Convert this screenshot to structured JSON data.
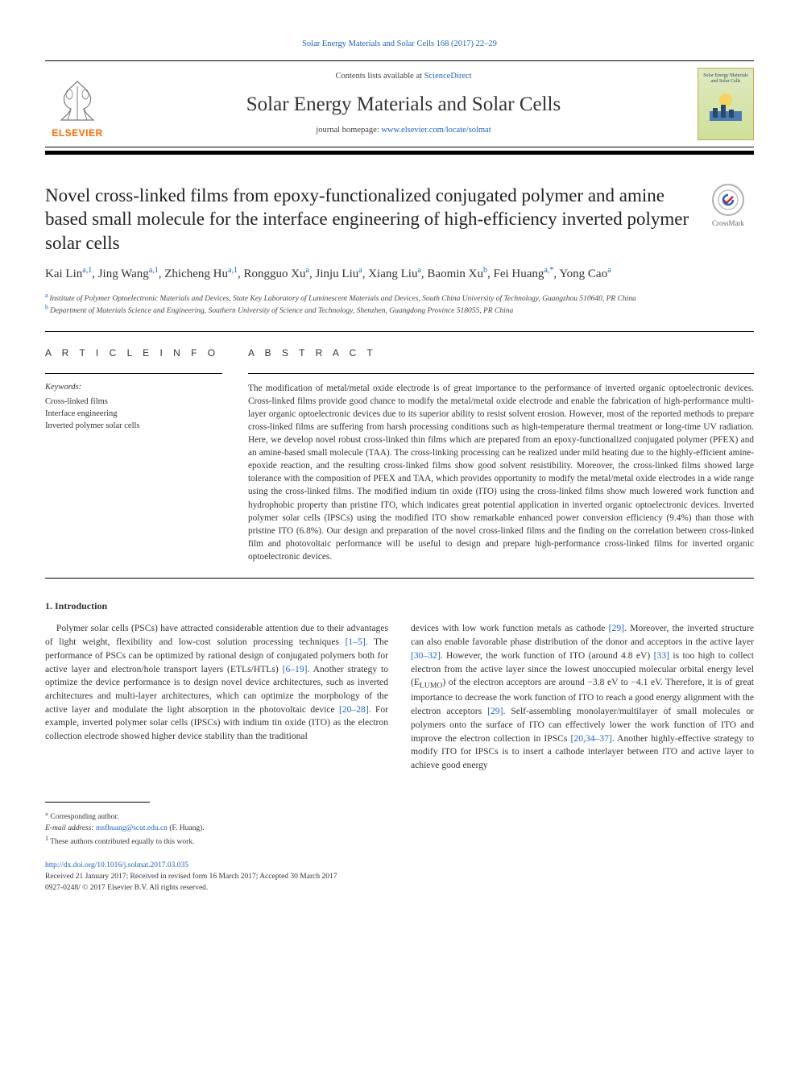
{
  "header": {
    "topCitation": "Solar Energy Materials and Solar Cells 168 (2017) 22–29",
    "contentsPrefix": "Contents lists available at ",
    "contentsLink": "ScienceDirect",
    "journalName": "Solar Energy Materials and Solar Cells",
    "homepagePrefix": "journal homepage: ",
    "homepageLink": "www.elsevier.com/locate/solmat",
    "elsevierWord": "ELSEVIER",
    "coverTitle": "Solar Energy Materials and Solar Cells"
  },
  "crossmark": {
    "label": "CrossMark"
  },
  "article": {
    "title": "Novel cross-linked films from epoxy-functionalized conjugated polymer and amine based small molecule for the interface engineering of high-efficiency inverted polymer solar cells",
    "authorsHtml": [
      {
        "name": "Kai Lin",
        "aff": "a,1"
      },
      {
        "name": "Jing Wang",
        "aff": "a,1"
      },
      {
        "name": "Zhicheng Hu",
        "aff": "a,1"
      },
      {
        "name": "Rongguo Xu",
        "aff": "a"
      },
      {
        "name": "Jinju Liu",
        "aff": "a"
      },
      {
        "name": "Xiang Liu",
        "aff": "a"
      },
      {
        "name": "Baomin Xu",
        "aff": "b"
      },
      {
        "name": "Fei Huang",
        "aff": "a,*"
      },
      {
        "name": "Yong Cao",
        "aff": "a"
      }
    ],
    "affA": "Institute of Polymer Optoelectronic Materials and Devices, State Key Laboratory of Luminescent Materials and Devices, South China University of Technology, Guangzhou 510640, PR China",
    "affB": "Department of Materials Science and Engineering, Southern University of Science and Technology, Shenzhen, Guangdong Province 518055, PR China"
  },
  "info": {
    "heading": "A R T I C L E   I N F O",
    "kwLabel": "Keywords:",
    "keywords": [
      "Cross-linked films",
      "Interface engineering",
      "Inverted polymer solar cells"
    ]
  },
  "abstract": {
    "heading": "A B S T R A C T",
    "text": "The modification of metal/metal oxide electrode is of great importance to the performance of inverted organic optoelectronic devices. Cross-linked films provide good chance to modify the metal/metal oxide electrode and enable the fabrication of high-performance multi-layer organic optoelectronic devices due to its superior ability to resist solvent erosion. However, most of the reported methods to prepare cross-linked films are suffering from harsh processing conditions such as high-temperature thermal treatment or long-time UV radiation. Here, we develop novel robust cross-linked thin films which are prepared from an epoxy-functionalized conjugated polymer (PFEX) and an amine-based small molecule (TAA). The cross-linking processing can be realized under mild heating due to the highly-efficient amine-epoxide reaction, and the resulting cross-linked films show good solvent resistibility. Moreover, the cross-linked films showed large tolerance with the composition of PFEX and TAA, which provides opportunity to modify the metal/metal oxide electrodes in a wide range using the cross-linked films. The modified indium tin oxide (ITO) using the cross-linked films show much lowered work function and hydrophobic property than pristine ITO, which indicates great potential application in inverted organic optoelectronic devices. Inverted polymer solar cells (IPSCs) using the modified ITO show remarkable enhanced power conversion efficiency (9.4%) than those with pristine ITO (6.8%). Our design and preparation of the novel cross-linked films and the finding on the correlation between cross-linked film and photovoltaic performance will be useful to design and prepare high-performance cross-linked films for inverted organic optoelectronic devices."
  },
  "intro": {
    "heading": "1. Introduction",
    "col1a": "Polymer solar cells (PSCs) have attracted considerable attention due to their advantages of light weight, flexibility and low-cost solution processing techniques ",
    "ref1": "[1–5]",
    "col1b": ". The performance of PSCs can be optimized by rational design of conjugated polymers both for active layer and electron/hole transport layers (ETLs/HTLs) ",
    "ref2": "[6–19]",
    "col1c": ". Another strategy to optimize the device performance is to design novel device architectures, such as inverted architectures and multi-layer architectures, which can optimize the morphology of the active layer and modulate the light absorption in the photovoltaic device ",
    "ref3": "[20–28]",
    "col1d": ". For example, inverted polymer solar cells (IPSCs) with indium tin oxide (ITO) as the electron collection electrode showed higher device stability than the traditional",
    "col2a": "devices with low work function metals as cathode ",
    "ref4": "[29]",
    "col2b": ". Moreover, the inverted structure can also enable favorable phase distribution of the donor and acceptors in the active layer ",
    "ref5": "[30–32]",
    "col2c": ". However, the work function of ITO (around 4.8 eV) ",
    "ref6": "[33]",
    "col2d": " is too high to collect electron from the active layer since the lowest unoccupied molecular orbital energy level (E",
    "lumo": "LUMO",
    "col2e": ") of the electron acceptors are around −3.8 eV to −4.1 eV. Therefore, it is of great importance to decrease the work function of ITO to reach a good energy alignment with the electron acceptors ",
    "ref7": "[29]",
    "col2f": ". Self-assembling monolayer/multilayer of small molecules or polymers onto the surface of ITO can effectively lower the work function of ITO and improve the electron collection in IPSCs ",
    "ref8": "[20,34–37]",
    "col2g": ". Another highly-effective strategy to modify ITO for IPSCs is to insert a cathode interlayer between ITO and active layer to achieve good energy"
  },
  "footnotes": {
    "corr": "Corresponding author.",
    "emailLabel": "E-mail address: ",
    "email": "msfhuang@scut.edu.cn",
    "emailAfter": " (F. Huang).",
    "equal": "These authors contributed equally to this work."
  },
  "doi": {
    "link": "http://dx.doi.org/10.1016/j.solmat.2017.03.035",
    "received": "Received 21 January 2017; Received in revised form 16 March 2017; Accepted 30 March 2017",
    "copyright": "0927-0248/ © 2017 Elsevier B.V. All rights reserved."
  },
  "colors": {
    "link": "#2065c4",
    "elsevierOrange": "#ff6a00",
    "text": "#333333"
  }
}
